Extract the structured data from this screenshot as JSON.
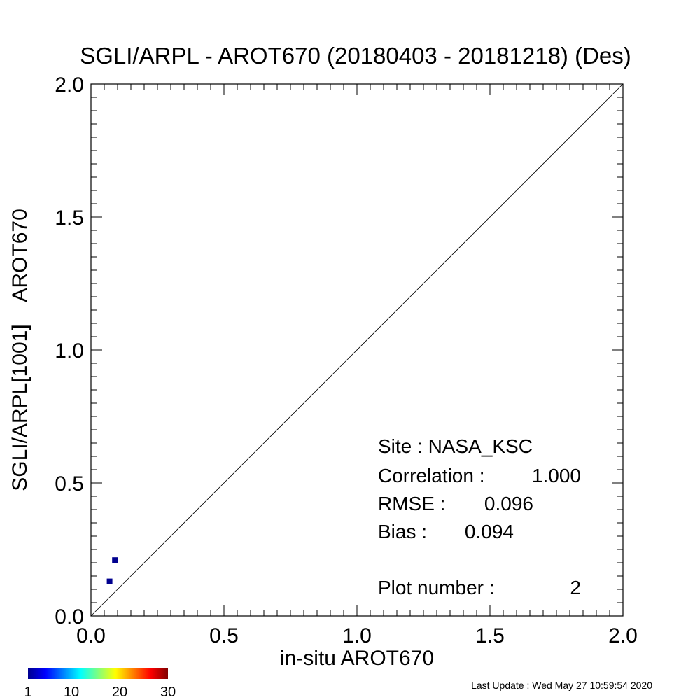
{
  "chart_data": {
    "type": "scatter",
    "title": "SGLI/ARPL - AROT670 (20180403 - 20181218) (Des)",
    "xlabel": "in-situ AROT670",
    "ylabel": "SGLI/ARPL[1001]    AROT670",
    "xlim": [
      0.0,
      2.0
    ],
    "ylim": [
      0.0,
      2.0
    ],
    "x_ticks": [
      "0.0",
      "0.5",
      "1.0",
      "1.5",
      "2.0"
    ],
    "y_ticks": [
      "0.0",
      "0.5",
      "1.0",
      "1.5",
      "2.0"
    ],
    "reference_line": "1:1",
    "grid": false,
    "points": [
      {
        "x": 0.07,
        "y": 0.13,
        "count": 1
      },
      {
        "x": 0.09,
        "y": 0.21,
        "count": 1
      }
    ],
    "colorbar": {
      "colormap": "jet",
      "min": 1,
      "max": 30,
      "labels": [
        "1",
        "10",
        "20",
        "30"
      ],
      "values": [
        1,
        10,
        20,
        30
      ]
    },
    "stats": {
      "site_label": "Site : NASA_KSC",
      "correlation_label": "Correlation :",
      "correlation_value": "1.000",
      "rmse_label": "RMSE :",
      "rmse_value": "0.096",
      "bias_label": "Bias :",
      "bias_value": "0.094",
      "plot_number_label": "Plot number :",
      "plot_number_value": "2"
    }
  },
  "footer": {
    "last_update": "Last Update : Wed May 27 10:59:54 2020"
  },
  "colors": {
    "point": "#00008f",
    "axis": "#000000",
    "reference_line": "#000000"
  }
}
